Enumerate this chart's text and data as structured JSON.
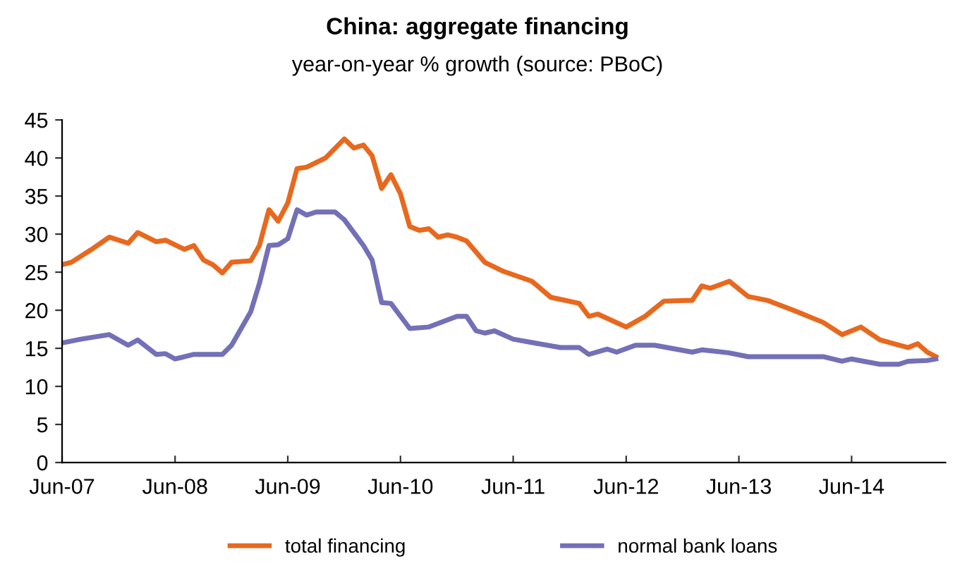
{
  "chart_data": {
    "type": "line",
    "title": "China: aggregate financing",
    "subtitle": "year-on-year % growth (source: PBoC)",
    "series": [
      {
        "name": "total financing",
        "color": "#e8681e",
        "x": [
          "2007-06",
          "2007-07",
          "2007-09",
          "2007-11",
          "2008-01",
          "2008-02",
          "2008-04",
          "2008-05",
          "2008-07",
          "2008-08",
          "2008-09",
          "2008-10",
          "2008-11",
          "2008-12",
          "2009-02",
          "2009-03",
          "2009-04",
          "2009-05",
          "2009-06",
          "2009-07",
          "2009-08",
          "2009-10",
          "2009-12",
          "2010-01",
          "2010-02",
          "2010-03",
          "2010-04",
          "2010-05",
          "2010-06",
          "2010-07",
          "2010-08",
          "2010-09",
          "2010-10",
          "2010-11",
          "2010-12",
          "2011-01",
          "2011-03",
          "2011-05",
          "2011-08",
          "2011-10",
          "2012-01",
          "2012-02",
          "2012-03",
          "2012-06",
          "2012-08",
          "2012-10",
          "2013-01",
          "2013-02",
          "2013-03",
          "2013-05",
          "2013-07",
          "2013-09",
          "2013-12",
          "2014-03",
          "2014-05",
          "2014-07",
          "2014-09",
          "2014-12",
          "2015-01",
          "2015-02",
          "2015-03"
        ],
        "values": [
          26.0,
          26.3,
          27.9,
          29.6,
          28.8,
          30.2,
          29.0,
          29.2,
          28.0,
          28.5,
          26.6,
          26.0,
          24.9,
          26.3,
          26.5,
          28.5,
          33.2,
          31.7,
          34.1,
          38.6,
          38.8,
          40.0,
          42.5,
          41.3,
          41.7,
          40.3,
          36.0,
          37.8,
          35.3,
          31.0,
          30.5,
          30.7,
          29.6,
          29.9,
          29.6,
          29.1,
          26.3,
          25.1,
          23.8,
          21.7,
          20.9,
          19.2,
          19.5,
          17.8,
          19.2,
          21.2,
          21.3,
          23.2,
          22.9,
          23.8,
          21.8,
          21.3,
          19.9,
          18.4,
          16.8,
          17.8,
          16.1,
          15.1,
          15.6,
          14.5,
          13.9
        ]
      },
      {
        "name": "normal bank loans",
        "color": "#7370b8",
        "x": [
          "2007-06",
          "2007-08",
          "2007-11",
          "2008-01",
          "2008-02",
          "2008-04",
          "2008-05",
          "2008-06",
          "2008-08",
          "2008-09",
          "2008-11",
          "2008-12",
          "2009-02",
          "2009-03",
          "2009-04",
          "2009-05",
          "2009-06",
          "2009-07",
          "2009-08",
          "2009-09",
          "2009-11",
          "2009-12",
          "2010-02",
          "2010-03",
          "2010-04",
          "2010-05",
          "2010-07",
          "2010-09",
          "2010-12",
          "2011-01",
          "2011-02",
          "2011-03",
          "2011-04",
          "2011-06",
          "2011-11",
          "2012-01",
          "2012-02",
          "2012-04",
          "2012-05",
          "2012-07",
          "2012-09",
          "2013-01",
          "2013-02",
          "2013-05",
          "2013-07",
          "2014-03",
          "2014-05",
          "2014-06",
          "2014-09",
          "2014-11",
          "2014-12",
          "2015-02",
          "2015-03"
        ],
        "values": [
          15.7,
          16.2,
          16.8,
          15.4,
          16.1,
          14.2,
          14.3,
          13.6,
          14.2,
          14.2,
          14.2,
          15.4,
          19.8,
          23.5,
          28.5,
          28.6,
          29.4,
          33.2,
          32.5,
          32.9,
          32.9,
          31.9,
          28.5,
          26.6,
          21.0,
          20.9,
          17.6,
          17.8,
          19.2,
          19.2,
          17.3,
          17.0,
          17.3,
          16.2,
          15.1,
          15.1,
          14.2,
          14.9,
          14.5,
          15.4,
          15.4,
          14.5,
          14.8,
          14.4,
          13.9,
          13.9,
          13.3,
          13.6,
          12.9,
          12.9,
          13.3,
          13.4,
          13.6
        ]
      }
    ],
    "xlim": [
      "2007-06",
      "2015-04"
    ],
    "xticks": [
      {
        "value": "2007-06",
        "label": "Jun-07"
      },
      {
        "value": "2008-06",
        "label": "Jun-08"
      },
      {
        "value": "2009-06",
        "label": "Jun-09"
      },
      {
        "value": "2010-06",
        "label": "Jun-10"
      },
      {
        "value": "2011-06",
        "label": "Jun-11"
      },
      {
        "value": "2012-06",
        "label": "Jun-12"
      },
      {
        "value": "2013-06",
        "label": "Jun-13"
      },
      {
        "value": "2014-06",
        "label": "Jun-14"
      }
    ],
    "ylim": [
      0,
      45
    ],
    "yticks": [
      0,
      5,
      10,
      15,
      20,
      25,
      30,
      35,
      40,
      45
    ],
    "legend": "bottom",
    "marker": "none",
    "line_style": "solid"
  }
}
